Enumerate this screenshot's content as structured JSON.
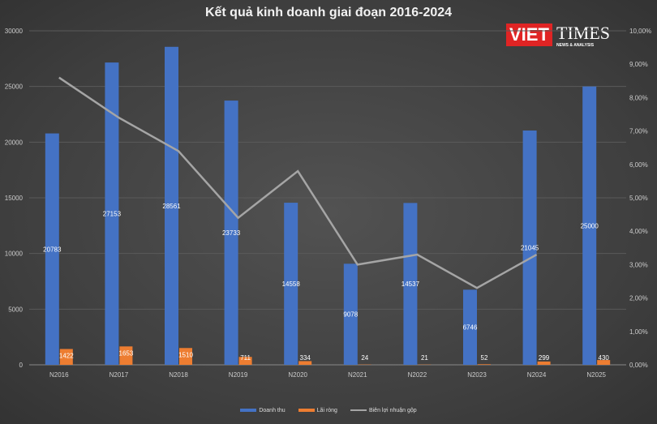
{
  "chart_data": {
    "type": "bar",
    "title": "Kết quả kinh doanh giai đoạn 2016-2024",
    "categories": [
      "N2016",
      "N2017",
      "N2018",
      "N2019",
      "N2020",
      "N2021",
      "N2022",
      "N2023",
      "N2024",
      "N2025"
    ],
    "series": [
      {
        "name": "Doanh thu",
        "type": "bar",
        "axis": "left",
        "color": "#4472c4",
        "values": [
          20783,
          27153,
          28561,
          23733,
          14558,
          9078,
          14537,
          6746,
          21045,
          25000
        ]
      },
      {
        "name": "Lãi ròng",
        "type": "bar",
        "axis": "left",
        "color": "#ed7d31",
        "values": [
          1422,
          1653,
          1510,
          711,
          334,
          24,
          21,
          52,
          299,
          430
        ]
      },
      {
        "name": "Biên lợi nhuận gộp",
        "type": "line",
        "axis": "right",
        "color": "#a5a5a5",
        "values": [
          8.6,
          7.4,
          6.4,
          4.4,
          5.8,
          3.0,
          3.3,
          2.3,
          3.3,
          null
        ]
      }
    ],
    "ylim": [
      0,
      30000
    ],
    "yticks": [
      "0",
      "5000",
      "10000",
      "15000",
      "20000",
      "25000",
      "30000"
    ],
    "y2lim": [
      0,
      10
    ],
    "y2ticks": [
      "0,00%",
      "1,00%",
      "2,00%",
      "3,00%",
      "4,00%",
      "5,00%",
      "6,00%",
      "7,00%",
      "8,00%",
      "9,00%",
      "10,00%"
    ],
    "grid": true,
    "legend_position": "bottom"
  },
  "logo": {
    "viet": "VIET",
    "times": "TIMES",
    "sub": "NEWS & ANALYSIS"
  }
}
